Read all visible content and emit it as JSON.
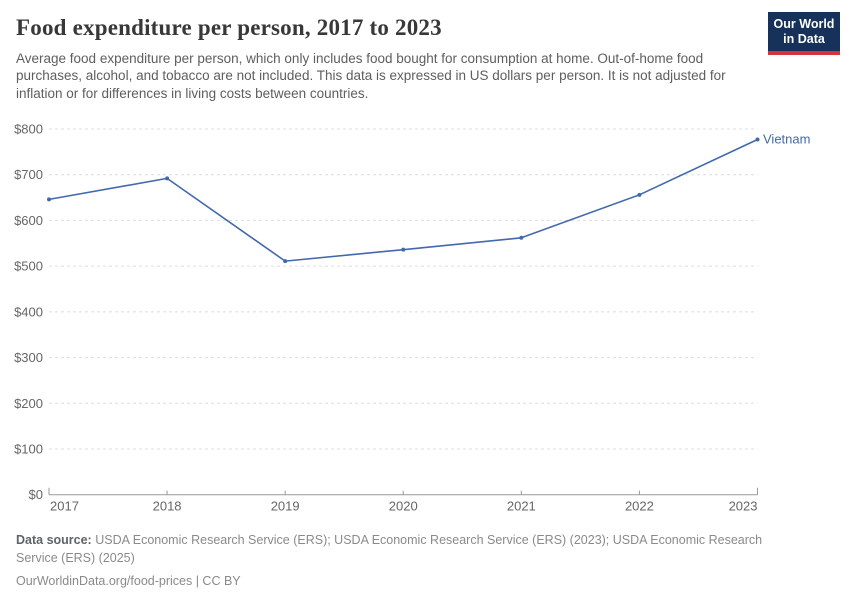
{
  "header": {
    "title": "Food expenditure per person, 2017 to 2023",
    "subtitle": "Average food expenditure per person, which only includes food bought for consumption at home. Out-of-home food purchases, alcohol, and tobacco are not included. This data is expressed in US dollars per person. It is not adjusted for inflation or for differences in living costs between countries."
  },
  "logo": {
    "line1": "Our World",
    "line2": "in Data",
    "bg_color": "#16325a",
    "bar_color": "#d5343e"
  },
  "chart_data": {
    "type": "line",
    "title": "Food expenditure per person, 2017 to 2023",
    "x": [
      2017,
      2018,
      2019,
      2020,
      2021,
      2022,
      2023
    ],
    "series": [
      {
        "name": "Vietnam",
        "color": "#4268ae",
        "values": [
          646,
          692,
          511,
          536,
          562,
          656,
          777
        ]
      }
    ],
    "xlabel": "",
    "ylabel": "",
    "ylim": [
      0,
      800
    ],
    "ytick_step": 100,
    "ytick_prefix": "$",
    "grid": true,
    "gridline_color": "#dddddd",
    "axis_color": "#999999",
    "tick_label_color": "#666666",
    "legend_position": "end-of-line"
  },
  "footer": {
    "data_source_label": "Data source:",
    "data_source_text": "USDA Economic Research Service (ERS); USDA Economic Research Service (ERS) (2023); USDA Economic Research Service (ERS) (2025)",
    "license_line": "OurWorldinData.org/food-prices | CC BY"
  }
}
